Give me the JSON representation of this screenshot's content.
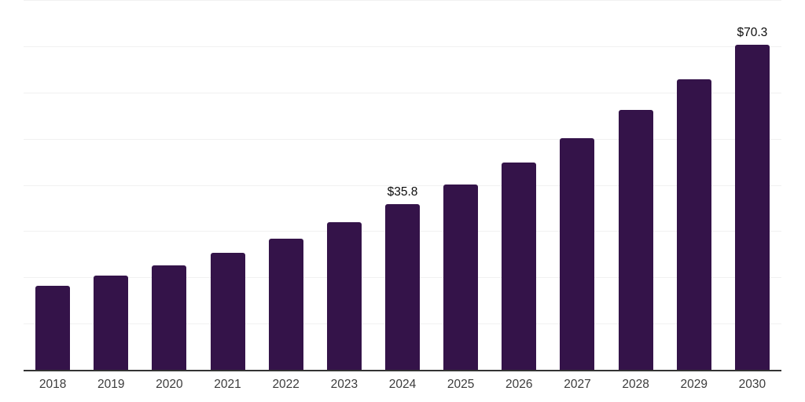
{
  "chart_data": {
    "type": "bar",
    "title": "",
    "xlabel": "",
    "ylabel": "",
    "categories": [
      "2018",
      "2019",
      "2020",
      "2021",
      "2022",
      "2023",
      "2024",
      "2025",
      "2026",
      "2027",
      "2028",
      "2029",
      "2030"
    ],
    "values": [
      18.1,
      20.4,
      22.6,
      25.3,
      28.4,
      31.9,
      35.8,
      40.0,
      44.8,
      50.1,
      56.2,
      62.9,
      70.3
    ],
    "data_labels": {
      "2024": "$35.8",
      "2030": "$70.3"
    },
    "ylim": [
      0,
      80
    ],
    "gridline_step": 10,
    "grid": true,
    "legend": false,
    "colors": {
      "bar": "#341349",
      "gridline": "#f1f1f1",
      "axis": "#333333",
      "year_label": "#3c3c3c",
      "value_label": "#0c0c0c",
      "background": "#ffffff"
    }
  }
}
